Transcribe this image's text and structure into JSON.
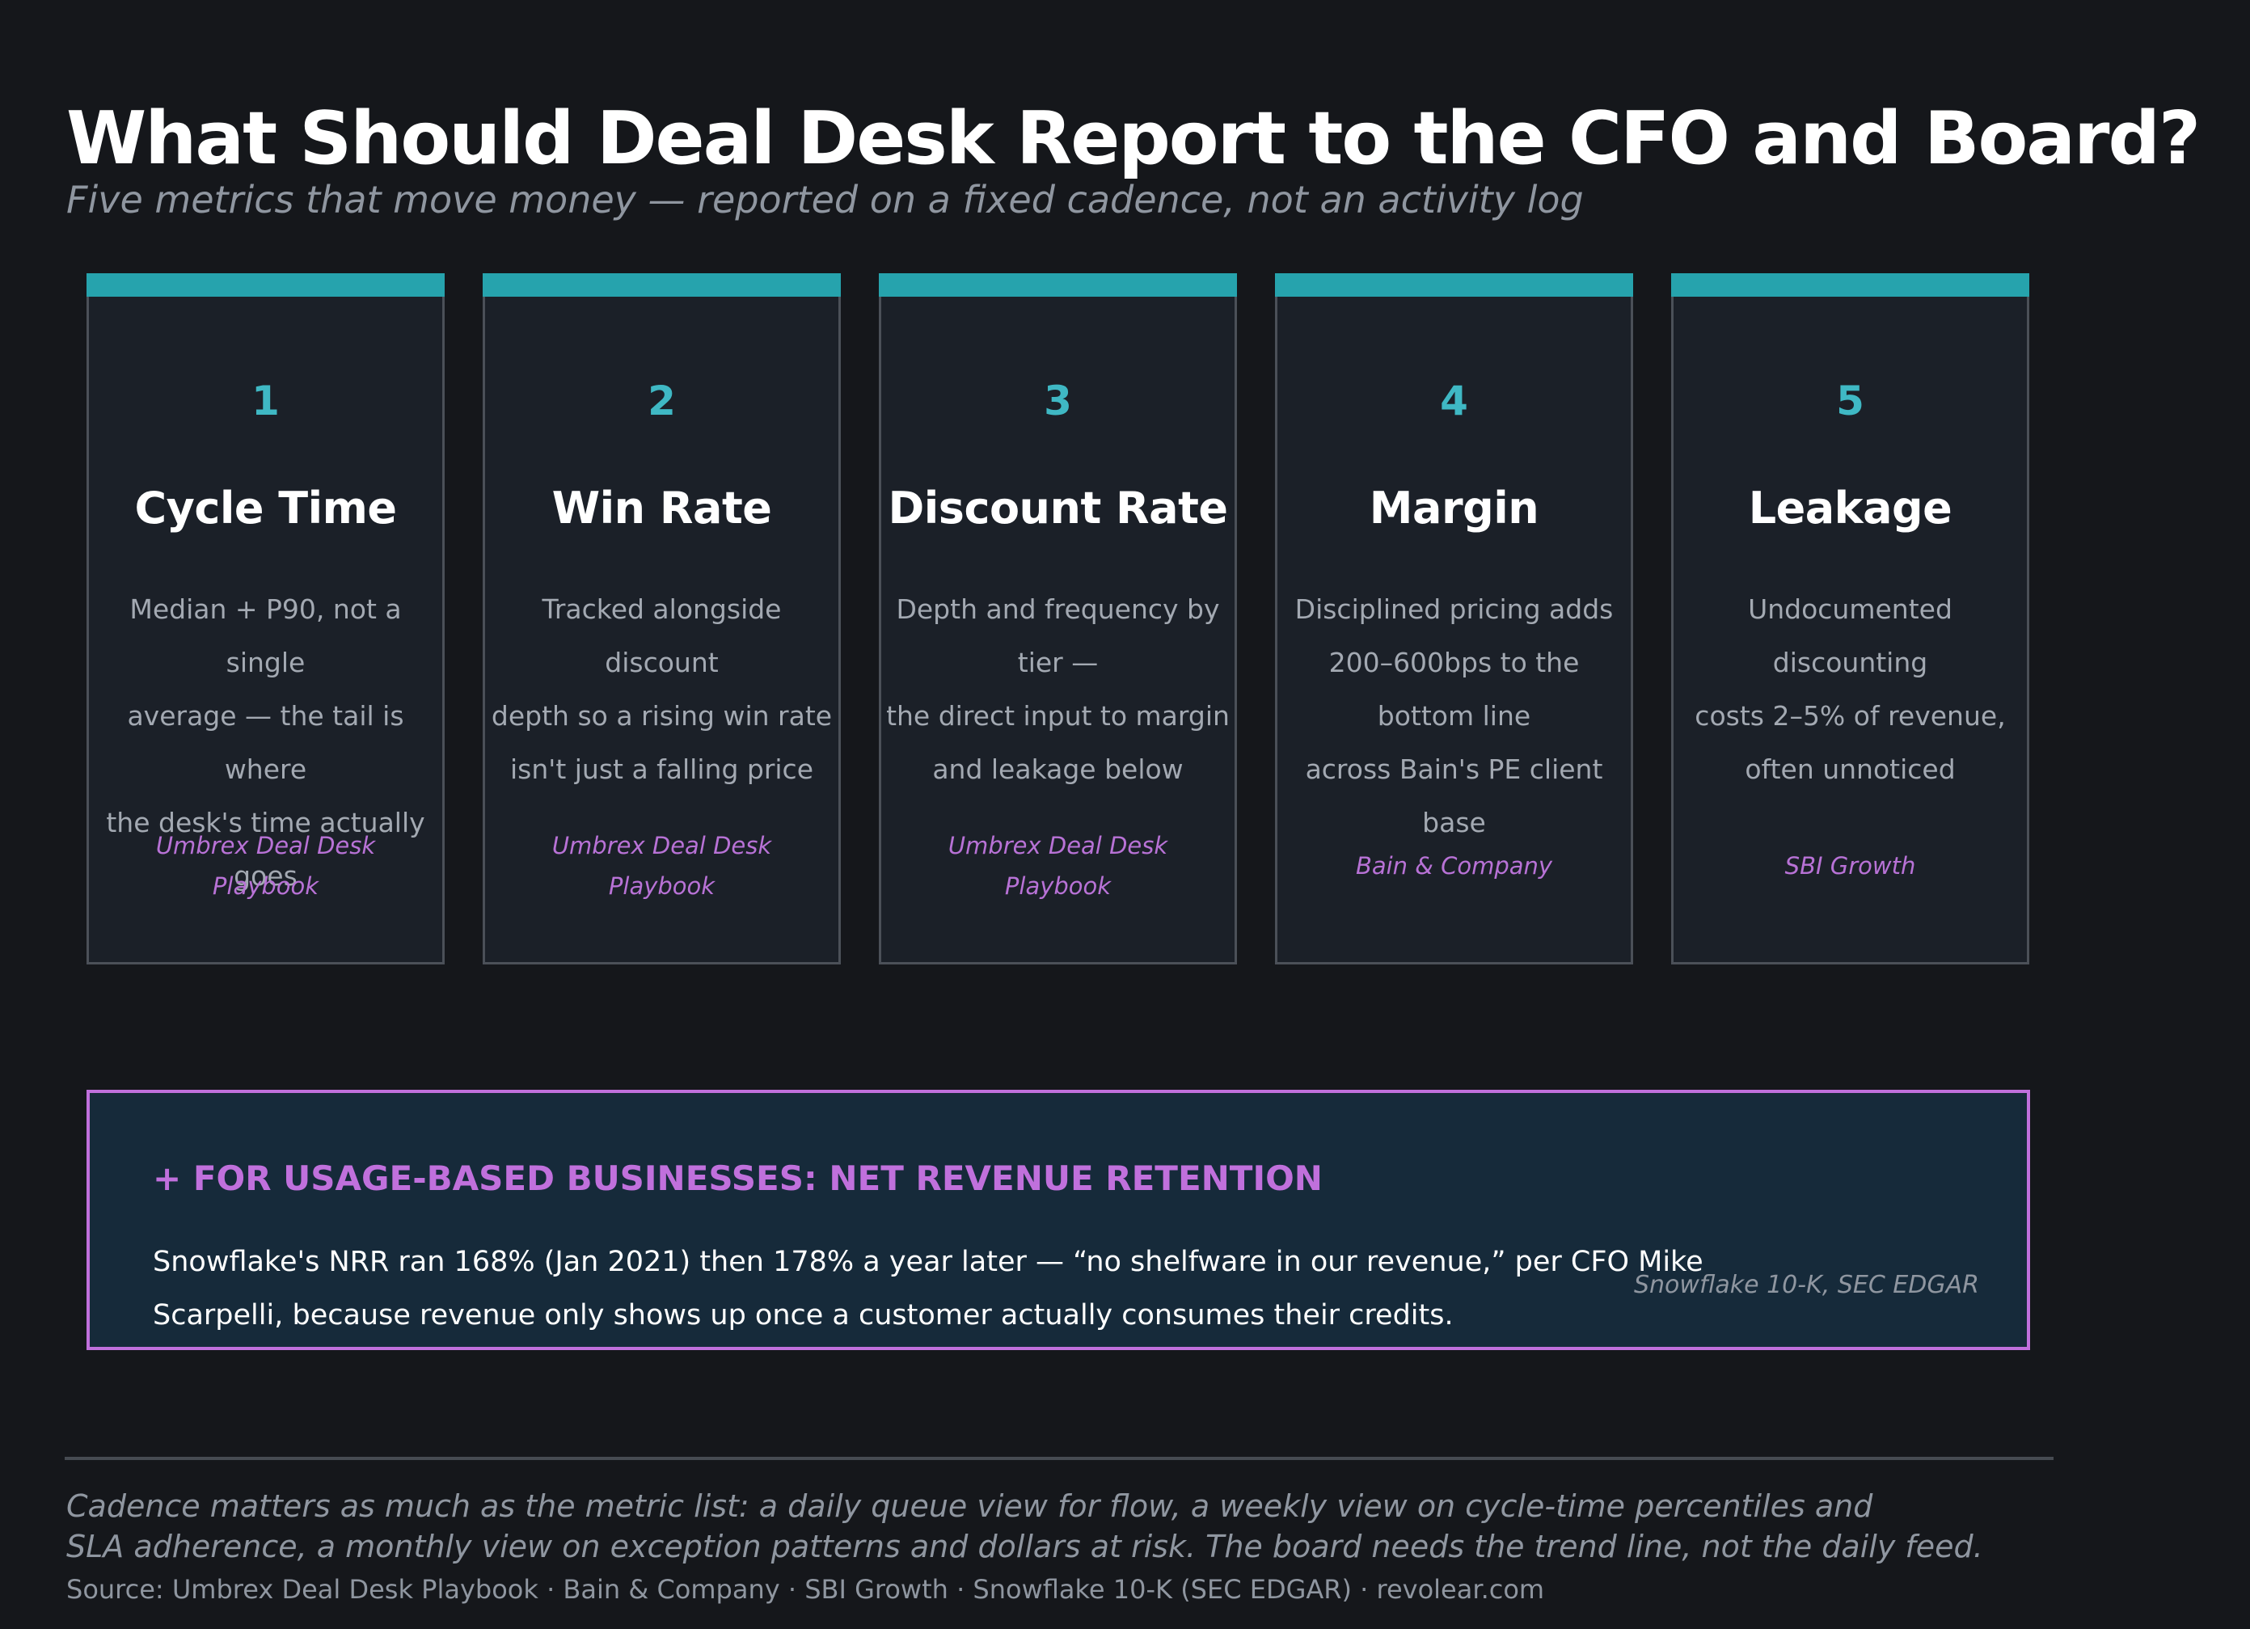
{
  "title": "What Should Deal Desk Report to the CFO and Board?",
  "subtitle": "Five metrics that move money — reported on a fixed cadence, not an activity log",
  "metrics": [
    {
      "number": "1",
      "name": "Cycle Time",
      "desc_lines": [
        "Median + P90, not a single",
        "average — the tail is where",
        "the desk's time actually goes"
      ],
      "source_lines": [
        "Umbrex Deal Desk",
        "Playbook"
      ]
    },
    {
      "number": "2",
      "name": "Win Rate",
      "desc_lines": [
        "Tracked alongside discount",
        "depth so a rising win rate",
        "isn't just a falling price"
      ],
      "source_lines": [
        "Umbrex Deal Desk",
        "Playbook"
      ]
    },
    {
      "number": "3",
      "name": "Discount Rate",
      "desc_lines": [
        "Depth and frequency by tier —",
        "the direct input to margin",
        "and leakage below"
      ],
      "source_lines": [
        "Umbrex Deal Desk",
        "Playbook"
      ]
    },
    {
      "number": "4",
      "name": "Margin",
      "desc_lines": [
        "Disciplined pricing adds",
        "200–600bps to the bottom line",
        "across Bain's PE client base"
      ],
      "source_lines": [
        "Bain & Company"
      ]
    },
    {
      "number": "5",
      "name": "Leakage",
      "desc_lines": [
        "Undocumented discounting",
        "costs 2–5% of revenue,",
        "often unnoticed"
      ],
      "source_lines": [
        "SBI Growth"
      ]
    }
  ],
  "callout": {
    "heading": "+ FOR USAGE-BASED BUSINESSES: NET REVENUE RETENTION",
    "text_lines": [
      "Snowflake's NRR ran 168% (Jan 2021) then 178% a year later — “no shelfware in our revenue,” per CFO Mike",
      "Scarpelli, because revenue only shows up once a customer actually consumes their credits."
    ],
    "source": "Snowflake 10-K, SEC EDGAR"
  },
  "footnote_lines": [
    "Cadence matters as much as the metric list: a daily queue view for flow, a weekly view on cycle-time percentiles and",
    "SLA adherence, a monthly view on exception patterns and dollars at risk. The board needs the trend line, not the daily feed."
  ],
  "sources": "Source: Umbrex Deal Desk Playbook · Bain & Company · SBI Growth · Snowflake 10-K (SEC EDGAR) · revolear.com"
}
